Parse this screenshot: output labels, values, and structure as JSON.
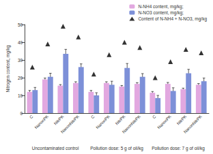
{
  "chart_data": {
    "type": "bar",
    "y_label": "Nitrogen content, mg/kg",
    "categories": [
      "C",
      "NanonPK",
      "NitrPK",
      "NanonNitrPK",
      "C",
      "NanonPK",
      "NitrPK",
      "NanonNitrPK",
      "C",
      "NanonPK",
      "NitrPK",
      "NanonNitrPK"
    ],
    "group_labels": [
      "Uncontaminated control",
      "Pollution dose: 5 g of oil/kg",
      "Pollution dose: 7 g of oil/kg"
    ],
    "series": [
      {
        "name": "N-NH4 content, mg/kg;",
        "type": "bar",
        "color": "#e2a8e0",
        "values": [
          12,
          19,
          15.5,
          17,
          12,
          17,
          15,
          16.5,
          11.5,
          16.5,
          13.5,
          16
        ],
        "errors": [
          0.8,
          0.8,
          0.6,
          0.7,
          0.8,
          0.7,
          0.6,
          0.7,
          0.7,
          0.8,
          0.6,
          0.7
        ]
      },
      {
        "name": "N-NO3 content, mg/kg;",
        "type": "bar",
        "color": "#7d90d8",
        "values": [
          13,
          20.5,
          33.5,
          26,
          10,
          16,
          25.5,
          20.5,
          8.5,
          12.5,
          22.5,
          18
        ],
        "errors": [
          1.5,
          2,
          2.5,
          1.8,
          1.5,
          2,
          2.5,
          1.8,
          1.5,
          1.8,
          2.2,
          1.8
        ]
      },
      {
        "name": "Content of N-NH4 + N-NO3, mg/kg",
        "type": "scatter",
        "marker": "triangle",
        "color": "#000000",
        "values": [
          26,
          39,
          49,
          43,
          22,
          33,
          40,
          37,
          20,
          29,
          36,
          34
        ]
      }
    ],
    "ylim": [
      0,
      50
    ],
    "yticks": [
      0,
      10,
      20,
      30,
      40,
      50
    ],
    "legend": "top-right",
    "grid": false
  }
}
